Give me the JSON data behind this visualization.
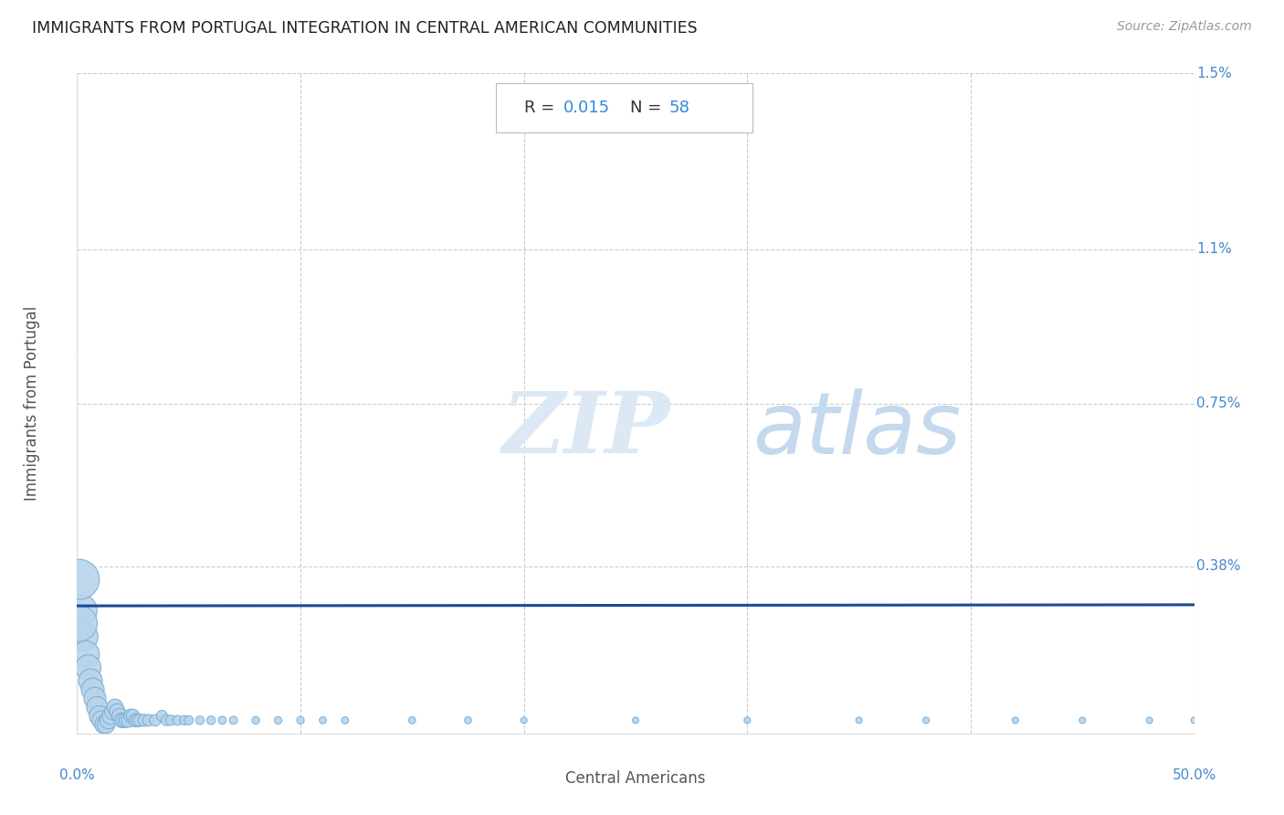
{
  "title": "IMMIGRANTS FROM PORTUGAL INTEGRATION IN CENTRAL AMERICAN COMMUNITIES",
  "source": "Source: ZipAtlas.com",
  "xlabel": "Central Americans",
  "ylabel": "Immigrants from Portugal",
  "xlim": [
    0,
    0.5
  ],
  "ylim": [
    0,
    0.015
  ],
  "R": "0.015",
  "N": "58",
  "scatter_color": "#b8d4ea",
  "scatter_edge_color": "#7aaed4",
  "line_color": "#1a4a9a",
  "background_color": "#ffffff",
  "grid_color": "#cccccc",
  "title_color": "#222222",
  "source_color": "#999999",
  "watermark_zip_color": "#dce8f5",
  "watermark_atlas_color": "#c8dff0",
  "points_x": [
    0.002,
    0.003,
    0.004,
    0.005,
    0.006,
    0.007,
    0.008,
    0.009,
    0.01,
    0.011,
    0.012,
    0.013,
    0.014,
    0.015,
    0.016,
    0.017,
    0.018,
    0.019,
    0.02,
    0.021,
    0.022,
    0.023,
    0.024,
    0.025,
    0.026,
    0.027,
    0.028,
    0.03,
    0.032,
    0.035,
    0.038,
    0.04,
    0.042,
    0.045,
    0.048,
    0.05,
    0.055,
    0.06,
    0.065,
    0.07,
    0.08,
    0.09,
    0.1,
    0.11,
    0.12,
    0.15,
    0.175,
    0.2,
    0.25,
    0.3,
    0.35,
    0.38,
    0.42,
    0.45,
    0.48,
    0.5,
    0.001,
    0.001
  ],
  "points_y": [
    0.0028,
    0.0022,
    0.0018,
    0.0015,
    0.0012,
    0.001,
    0.0008,
    0.0006,
    0.0004,
    0.0003,
    0.0002,
    0.0002,
    0.0003,
    0.0004,
    0.0005,
    0.0006,
    0.0005,
    0.0004,
    0.0003,
    0.0003,
    0.0003,
    0.0003,
    0.0004,
    0.0004,
    0.0003,
    0.0003,
    0.0003,
    0.0003,
    0.0003,
    0.0003,
    0.0004,
    0.0003,
    0.0003,
    0.0003,
    0.0003,
    0.0003,
    0.0003,
    0.0003,
    0.0003,
    0.0003,
    0.0003,
    0.0003,
    0.0003,
    0.0003,
    0.0003,
    0.0003,
    0.0003,
    0.0003,
    0.0003,
    0.0003,
    0.0003,
    0.0003,
    0.0003,
    0.0003,
    0.0003,
    0.0003,
    0.0035,
    0.0025
  ],
  "bubble_sizes": [
    120,
    100,
    90,
    80,
    70,
    65,
    60,
    55,
    50,
    45,
    40,
    38,
    36,
    35,
    33,
    32,
    30,
    28,
    27,
    26,
    25,
    24,
    23,
    22,
    21,
    20,
    19,
    18,
    17,
    16,
    15,
    14,
    13,
    12,
    11,
    10,
    9,
    9,
    8,
    8,
    7,
    7,
    7,
    6,
    6,
    6,
    6,
    5,
    5,
    5,
    5,
    5,
    5,
    5,
    5,
    5,
    200,
    160
  ]
}
